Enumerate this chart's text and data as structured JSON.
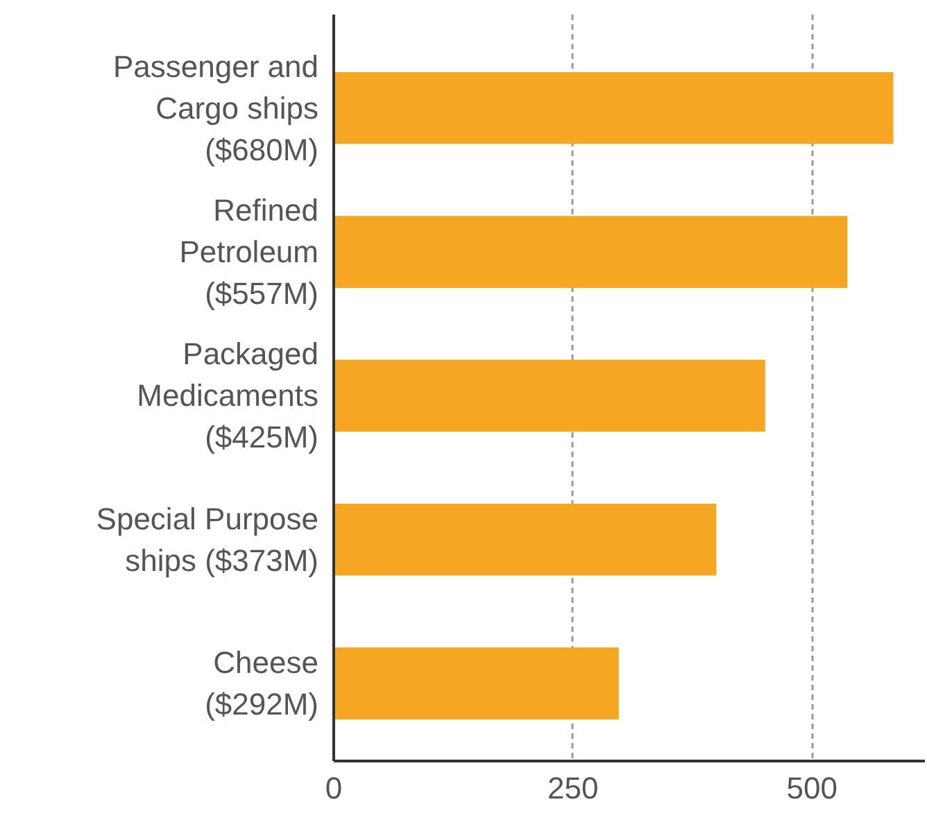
{
  "chart_data": {
    "type": "bar",
    "orientation": "horizontal",
    "categories": [
      "Passenger and\nCargo ships\n($680M)",
      "Refined\nPetroleum\n($557M)",
      "Packaged\nMedicaments\n($425M)",
      "Special Purpose\nships ($373M)",
      "Cheese\n($292M)"
    ],
    "values": [
      585,
      537,
      451,
      400,
      298
    ],
    "color": "#f5a623",
    "xlim": [
      0,
      618
    ],
    "xticks": [
      0,
      250,
      500
    ],
    "grid": "x"
  }
}
